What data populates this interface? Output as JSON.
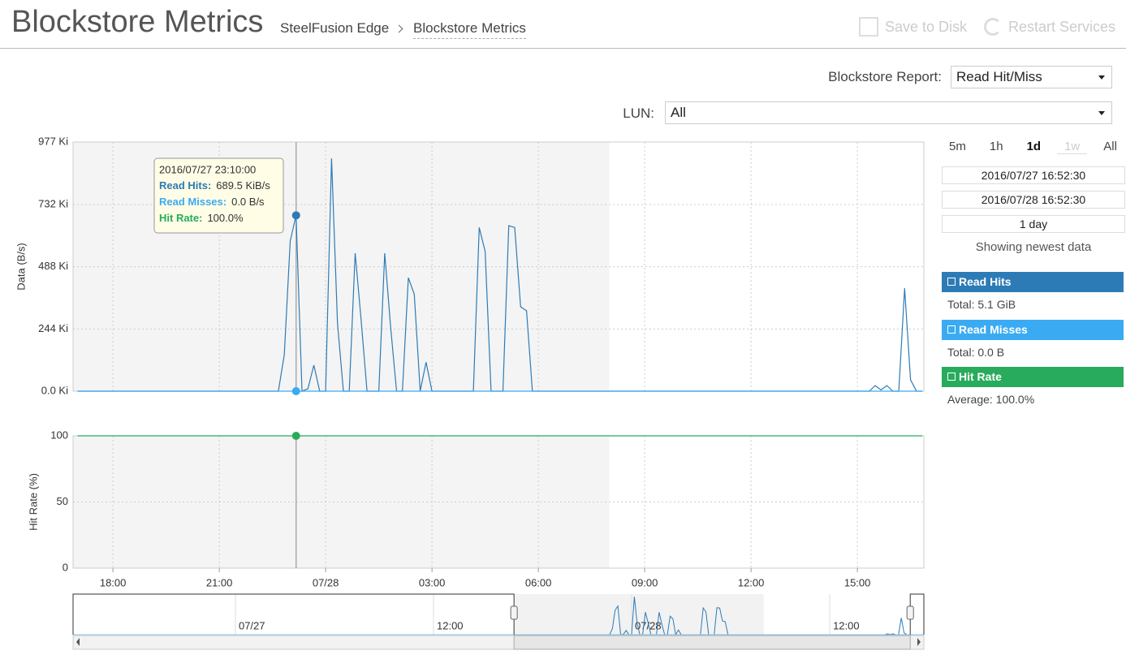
{
  "header": {
    "title": "Blockstore Metrics",
    "breadcrumb": [
      "SteelFusion Edge",
      "Blockstore Metrics"
    ],
    "actions": [
      {
        "label": "Save to Disk",
        "disabled": true
      },
      {
        "label": "Restart Services",
        "disabled": true
      }
    ]
  },
  "controls": {
    "report_label": "Blockstore Report:",
    "report_value": "Read Hit/Miss",
    "lun_label": "LUN:",
    "lun_value": "All"
  },
  "range": {
    "buttons": [
      "5m",
      "1h",
      "1d",
      "1w",
      "All"
    ],
    "active": "1d",
    "disabled": [
      "1w"
    ],
    "start": "2016/07/27 16:52:30",
    "end": "2016/07/28 16:52:30",
    "duration": "1 day",
    "status": "Showing newest data"
  },
  "sidebar": {
    "summaries": [
      "Total: 5.1 GiB",
      "Total: 0.0 B",
      "Average: 100.0%"
    ]
  },
  "tooltip": {
    "title": "2016/07/27 23:10:00",
    "rows": [
      {
        "label": "Read Hits:",
        "value": "689.5 KiB/s"
      },
      {
        "label": "Read Misses:",
        "value": "0.0 B/s"
      },
      {
        "label": "Hit Rate:",
        "value": "100.0%"
      }
    ]
  },
  "chart_data": [
    {
      "type": "line",
      "ylabel": "Data (B/s)",
      "xlim": [
        "2016/07/27 16:52:30",
        "2016/07/28 16:52:30"
      ],
      "shade": [
        "2016/07/27 16:52:30",
        "2016/07/28 08:00"
      ],
      "ylim": [
        0,
        977
      ],
      "yticks": [
        {
          "value": 0,
          "label": "0.0 Ki"
        },
        {
          "value": 244,
          "label": "244 Ki"
        },
        {
          "value": 488,
          "label": "488 Ki"
        },
        {
          "value": 732,
          "label": "732 Ki"
        },
        {
          "value": 977,
          "label": "977 Ki"
        }
      ],
      "grid": true,
      "x": [
        "2016/07/27 17:00",
        "2016/07/27 22:40",
        "2016/07/27 22:50",
        "2016/07/27 23:00",
        "2016/07/27 23:10",
        "2016/07/27 23:20",
        "2016/07/27 23:30",
        "2016/07/27 23:40",
        "2016/07/27 23:50",
        "2016/07/28 00:00",
        "2016/07/28 00:10",
        "2016/07/28 00:20",
        "2016/07/28 00:30",
        "2016/07/28 00:40",
        "2016/07/28 00:50",
        "2016/07/28 01:00",
        "2016/07/28 01:10",
        "2016/07/28 01:30",
        "2016/07/28 01:40",
        "2016/07/28 01:50",
        "2016/07/28 02:00",
        "2016/07/28 02:10",
        "2016/07/28 02:20",
        "2016/07/28 02:30",
        "2016/07/28 02:40",
        "2016/07/28 02:50",
        "2016/07/28 03:00",
        "2016/07/28 04:10",
        "2016/07/28 04:20",
        "2016/07/28 04:30",
        "2016/07/28 04:40",
        "2016/07/28 05:00",
        "2016/07/28 05:10",
        "2016/07/28 05:20",
        "2016/07/28 05:30",
        "2016/07/28 05:40",
        "2016/07/28 05:50",
        "2016/07/28 15:20",
        "2016/07/28 15:30",
        "2016/07/28 15:40",
        "2016/07/28 15:50",
        "2016/07/28 16:00",
        "2016/07/28 16:10",
        "2016/07/28 16:20",
        "2016/07/28 16:30",
        "2016/07/28 16:40",
        "2016/07/28 16:50"
      ],
      "series": [
        {
          "name": "Read Hits",
          "color": "#2d7bb6",
          "values": [
            0,
            0,
            143,
            589,
            689.5,
            0,
            10,
            102,
            0,
            0,
            913,
            267,
            0,
            0,
            541,
            280,
            0,
            0,
            541,
            250,
            0,
            0,
            445,
            380,
            0,
            114,
            0,
            0,
            642,
            548,
            0,
            0,
            649,
            642,
            331,
            315,
            0,
            0,
            22,
            5,
            22,
            0,
            0,
            404,
            45,
            0,
            0
          ]
        },
        {
          "name": "Read Misses",
          "color": "#3aabf3",
          "values": [
            0,
            0,
            0,
            0,
            0,
            0,
            0,
            0,
            0,
            0,
            0,
            0,
            0,
            0,
            0,
            0,
            0,
            0,
            0,
            0,
            0,
            0,
            0,
            0,
            0,
            0,
            0,
            0,
            0,
            0,
            0,
            0,
            0,
            0,
            0,
            0,
            0,
            0,
            0,
            0,
            0,
            0,
            0,
            0,
            0,
            0,
            0
          ]
        }
      ]
    },
    {
      "type": "line",
      "ylabel": "Hit Rate (%)",
      "xlim": [
        "2016/07/27 16:52:30",
        "2016/07/28 16:52:30"
      ],
      "shade": [
        "2016/07/27 16:52:30",
        "2016/07/28 08:00"
      ],
      "ylim": [
        0,
        100
      ],
      "yticks": [
        0,
        50,
        100
      ],
      "grid": true,
      "xticks": [
        {
          "value": "2016/07/27 18:00",
          "label": "18:00"
        },
        {
          "value": "2016/07/27 21:00",
          "label": "21:00"
        },
        {
          "value": "2016/07/28 00:00",
          "label": "07/28"
        },
        {
          "value": "2016/07/28 03:00",
          "label": "03:00"
        },
        {
          "value": "2016/07/28 06:00",
          "label": "06:00"
        },
        {
          "value": "2016/07/28 09:00",
          "label": "09:00"
        },
        {
          "value": "2016/07/28 12:00",
          "label": "12:00"
        },
        {
          "value": "2016/07/28 15:00",
          "label": "15:00"
        }
      ],
      "x": [
        "2016/07/27 17:00",
        "2016/07/27 22:40",
        "2016/07/27 22:50",
        "2016/07/27 23:00",
        "2016/07/27 23:10",
        "2016/07/27 23:20",
        "2016/07/27 23:30",
        "2016/07/27 23:40",
        "2016/07/27 23:50",
        "2016/07/28 00:00",
        "2016/07/28 00:10",
        "2016/07/28 00:20",
        "2016/07/28 00:30",
        "2016/07/28 00:40",
        "2016/07/28 00:50",
        "2016/07/28 01:00",
        "2016/07/28 01:10",
        "2016/07/28 01:30",
        "2016/07/28 01:40",
        "2016/07/28 01:50",
        "2016/07/28 02:00",
        "2016/07/28 02:10",
        "2016/07/28 02:20",
        "2016/07/28 02:30",
        "2016/07/28 02:40",
        "2016/07/28 02:50",
        "2016/07/28 03:00",
        "2016/07/28 04:10",
        "2016/07/28 04:20",
        "2016/07/28 04:30",
        "2016/07/28 04:40",
        "2016/07/28 05:00",
        "2016/07/28 05:10",
        "2016/07/28 05:20",
        "2016/07/28 05:30",
        "2016/07/28 05:40",
        "2016/07/28 05:50",
        "2016/07/28 15:20",
        "2016/07/28 15:30",
        "2016/07/28 15:40",
        "2016/07/28 15:50",
        "2016/07/28 16:00",
        "2016/07/28 16:10",
        "2016/07/28 16:20",
        "2016/07/28 16:30",
        "2016/07/28 16:40",
        "2016/07/28 16:50"
      ],
      "series": [
        {
          "name": "Hit Rate",
          "color": "#28ab5c",
          "values": [
            100,
            100,
            100,
            100,
            100,
            100,
            100,
            100,
            100,
            100,
            100,
            100,
            100,
            100,
            100,
            100,
            100,
            100,
            100,
            100,
            100,
            100,
            100,
            100,
            100,
            100,
            100,
            100,
            100,
            100,
            100,
            100,
            100,
            100,
            100,
            100,
            100,
            100,
            100,
            100,
            100,
            100,
            100,
            100,
            100,
            100,
            100
          ]
        }
      ]
    }
  ],
  "navigator": {
    "xlim": [
      "2016/07/26 14:10",
      "2016/07/28 17:42"
    ],
    "xticks": [
      {
        "value": "2016/07/27 00:00",
        "label": "07/27"
      },
      {
        "value": "2016/07/27 12:00",
        "label": "12:00"
      },
      {
        "value": "2016/07/28 00:00",
        "label": "07/28"
      },
      {
        "value": "2016/07/28 12:00",
        "label": "12:00"
      }
    ]
  }
}
